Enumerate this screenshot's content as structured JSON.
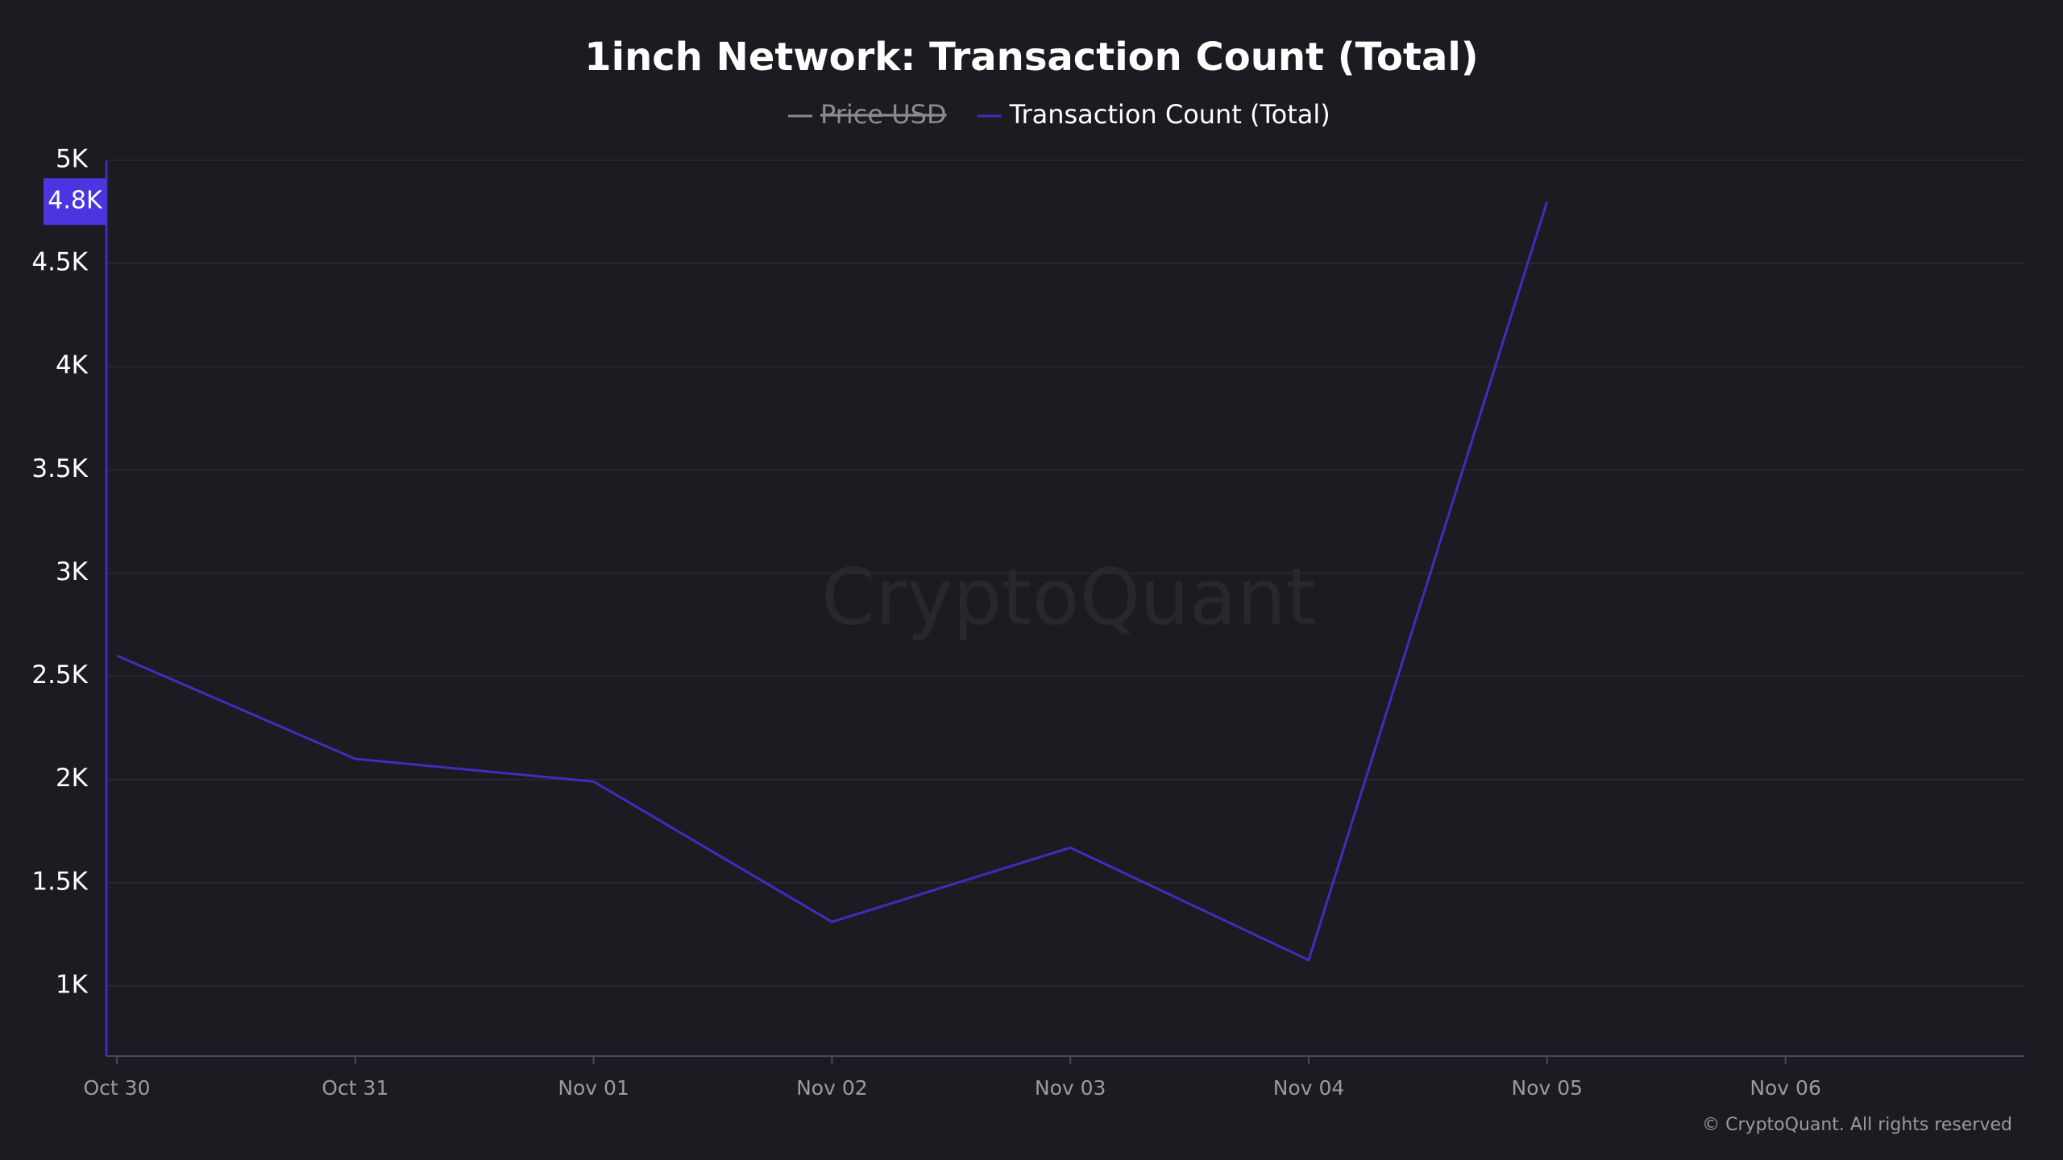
{
  "chart_data": {
    "type": "line",
    "title": "1inch Network: Transaction Count (Total)",
    "categories": [
      "Oct 30",
      "Oct 31",
      "Nov 01",
      "Nov 02",
      "Nov 03",
      "Nov 04",
      "Nov 05",
      "Nov 06"
    ],
    "series": [
      {
        "name": "Price USD",
        "color": "#8a8a90",
        "visible": false,
        "values": [
          null,
          null,
          null,
          null,
          null,
          null,
          null,
          null
        ]
      },
      {
        "name": "Transaction Count (Total)",
        "color": "#3f2dbd",
        "visible": true,
        "values": [
          2600,
          2100,
          1990,
          1310,
          1670,
          1125,
          4800,
          null
        ],
        "value_labels": [
          null,
          null,
          null,
          null,
          null,
          null,
          "4.8K",
          null
        ]
      }
    ],
    "ylim": [
      660,
      5000
    ],
    "yticks": [
      {
        "value": 1000,
        "label": "1K"
      },
      {
        "value": 1500,
        "label": "1.5K"
      },
      {
        "value": 2000,
        "label": "2K"
      },
      {
        "value": 2500,
        "label": "2.5K"
      },
      {
        "value": 3000,
        "label": "3K"
      },
      {
        "value": 3500,
        "label": "3.5K"
      },
      {
        "value": 4000,
        "label": "4K"
      },
      {
        "value": 4500,
        "label": "4.5K"
      },
      {
        "value": 5000,
        "label": "5K"
      }
    ],
    "grid": true,
    "legend": "top",
    "watermark": "CryptoQuant",
    "credit": "© CryptoQuant. All rights reserved"
  }
}
